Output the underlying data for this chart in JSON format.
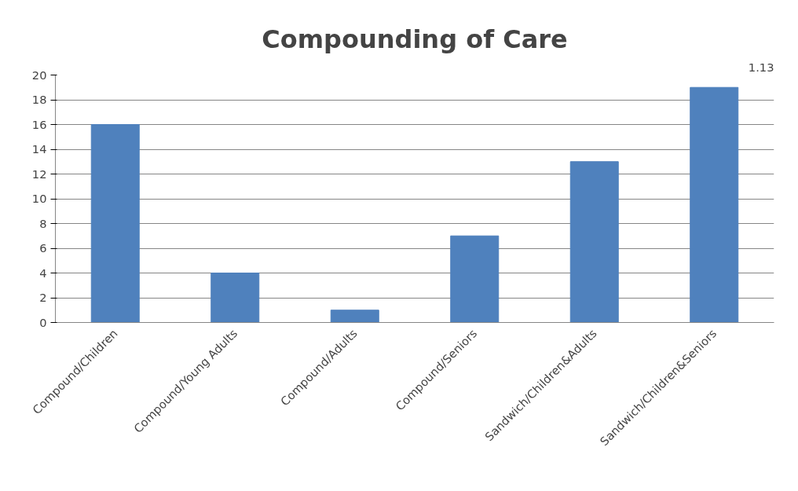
{
  "chart_data": {
    "type": "bar",
    "title": "Compounding of Care",
    "annotations": [
      "1.13"
    ],
    "categories": [
      "Compound/Children",
      "Compound/Young Adults",
      "Compound/Adults",
      "Compound/Seniors",
      "Sandwich/Children&Adults",
      "Sandwich/Children&Seniors"
    ],
    "values": [
      16,
      4,
      1,
      7,
      13,
      19
    ],
    "color": "#4f81bd",
    "ylim": [
      0,
      20
    ],
    "yticks": [
      0,
      2,
      4,
      6,
      8,
      10,
      12,
      14,
      16,
      18,
      20
    ],
    "grid": "y"
  }
}
